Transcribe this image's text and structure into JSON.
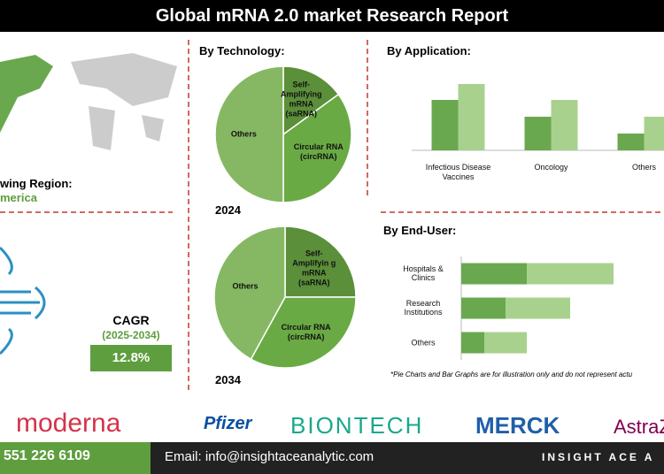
{
  "header": {
    "title": "Global mRNA 2.0 market Research Report"
  },
  "region": {
    "label": "wing Region:",
    "value": "merica"
  },
  "cagr": {
    "label": "CAGR",
    "period": "(2025-2034)",
    "value": "12.8%"
  },
  "chart_data": [
    {
      "type": "pie",
      "title": "By Technology:",
      "subtitle": "2024",
      "categories": [
        "Self-Amplifying mRNA (saRNA)",
        "Circular RNA (circRNA)",
        "Others"
      ],
      "values": [
        15,
        35,
        50
      ],
      "colors": [
        "#5b8f3a",
        "#6aaa44",
        "#86b863"
      ]
    },
    {
      "type": "pie",
      "subtitle": "2034",
      "categories": [
        "Self-Amplifyin g mRNA (saRNA)",
        "Circular RNA (circRNA)",
        "Others"
      ],
      "values": [
        25,
        33,
        42
      ],
      "colors": [
        "#5b8f3a",
        "#6aaa44",
        "#86b863"
      ]
    },
    {
      "type": "bar",
      "title": "By Application:",
      "categories": [
        "Infectious Disease Vaccines",
        "Oncology",
        "Others"
      ],
      "series": [
        {
          "color": "#6aa84f",
          "values": [
            57,
            38,
            19
          ]
        },
        {
          "color": "#a9d18e",
          "values": [
            75,
            57,
            38
          ]
        }
      ]
    },
    {
      "type": "stacked-barh",
      "title": "By End-User:",
      "categories": [
        "Hospitals & Clinics",
        "Research Institutions",
        "Others"
      ],
      "series": [
        {
          "color": "#6aa84f",
          "values": [
            74,
            50,
            26
          ]
        },
        {
          "color": "#a9d18e",
          "values": [
            98,
            73,
            48
          ]
        }
      ],
      "note": "*Pie Charts and Bar Graphs are for illustration only and do not represent actu"
    }
  ],
  "players": [
    "moderna",
    "Pfizer",
    "BIONTECH",
    "MERCK",
    "AstraZ"
  ],
  "footer": {
    "phone": "551 226 6109",
    "email": "Email: info@insightaceanalytic.com",
    "brand": "INSIGHT ACE A"
  }
}
